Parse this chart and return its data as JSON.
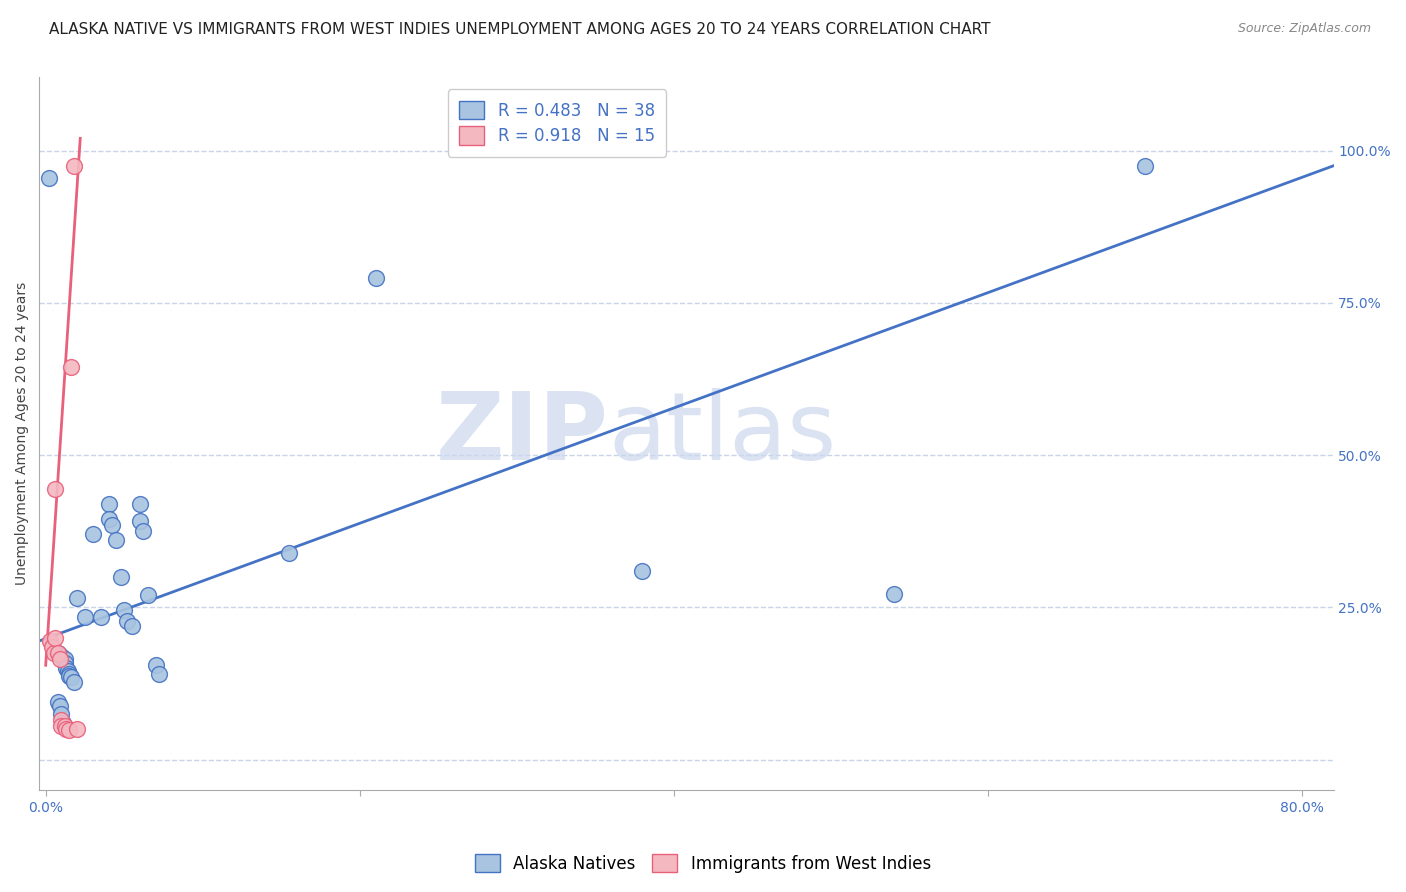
{
  "title": "ALASKA NATIVE VS IMMIGRANTS FROM WEST INDIES UNEMPLOYMENT AMONG AGES 20 TO 24 YEARS CORRELATION CHART",
  "source": "Source: ZipAtlas.com",
  "ylabel": "Unemployment Among Ages 20 to 24 years",
  "xlim": [
    -0.004,
    0.82
  ],
  "ylim": [
    -0.05,
    1.12
  ],
  "xticks": [
    0.0,
    0.2,
    0.4,
    0.6,
    0.8
  ],
  "xticklabels": [
    "0.0%",
    "",
    "",
    "",
    "80.0%"
  ],
  "right_ytick_positions": [
    0.0,
    0.25,
    0.5,
    0.75,
    1.0
  ],
  "right_ytick_labels": [
    "",
    "25.0%",
    "50.0%",
    "75.0%",
    "100.0%"
  ],
  "alaska_R": 0.483,
  "alaska_N": 38,
  "westindies_R": 0.918,
  "westindies_N": 15,
  "alaska_color": "#a8c4e0",
  "alaska_line_color": "#4472c4",
  "westindies_color": "#f4b8c1",
  "westindies_line_color": "#e8607a",
  "watermark_zip": "ZIP",
  "watermark_atlas": "atlas",
  "alaska_scatter_x": [
    0.02,
    0.025,
    0.03,
    0.035,
    0.04,
    0.04,
    0.042,
    0.045,
    0.048,
    0.05,
    0.052,
    0.055,
    0.06,
    0.06,
    0.062,
    0.065,
    0.07,
    0.072,
    0.008,
    0.01,
    0.012,
    0.012,
    0.013,
    0.014,
    0.015,
    0.015,
    0.016,
    0.018,
    0.008,
    0.009,
    0.01,
    0.011,
    0.155,
    0.21,
    0.38,
    0.54,
    0.7,
    0.002
  ],
  "alaska_scatter_y": [
    0.265,
    0.235,
    0.37,
    0.235,
    0.42,
    0.395,
    0.385,
    0.36,
    0.3,
    0.245,
    0.228,
    0.22,
    0.42,
    0.392,
    0.375,
    0.27,
    0.155,
    0.14,
    0.175,
    0.17,
    0.165,
    0.158,
    0.15,
    0.145,
    0.14,
    0.138,
    0.135,
    0.128,
    0.095,
    0.088,
    0.075,
    0.06,
    0.34,
    0.79,
    0.31,
    0.272,
    0.975,
    0.955
  ],
  "westindies_scatter_x": [
    0.003,
    0.004,
    0.005,
    0.006,
    0.006,
    0.008,
    0.009,
    0.01,
    0.01,
    0.012,
    0.013,
    0.015,
    0.016,
    0.018,
    0.02
  ],
  "westindies_scatter_y": [
    0.195,
    0.185,
    0.175,
    0.445,
    0.2,
    0.175,
    0.165,
    0.065,
    0.055,
    0.055,
    0.05,
    0.048,
    0.645,
    0.975,
    0.05
  ],
  "alaska_line_x": [
    -0.004,
    0.82
  ],
  "alaska_line_y": [
    0.195,
    0.975
  ],
  "westindies_line_x": [
    0.0,
    0.022
  ],
  "westindies_line_y": [
    0.155,
    1.02
  ],
  "background_color": "#ffffff",
  "grid_color": "#c8d4e8",
  "title_fontsize": 11,
  "source_fontsize": 9,
  "axis_label_fontsize": 10,
  "tick_fontsize": 10,
  "legend_fontsize": 12
}
